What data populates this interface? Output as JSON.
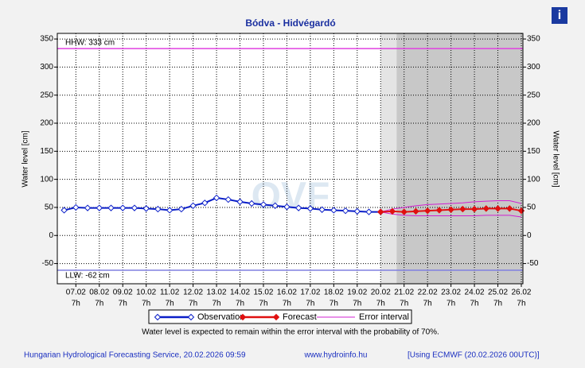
{
  "chart_data": {
    "type": "line",
    "title": "Bódva - Hidvégardó",
    "ylabel": "Water level [cm]",
    "y2label": "Water level [cm]",
    "xlim": [
      6.5,
      26.36
    ],
    "ylim": [
      -86,
      360
    ],
    "yticks": [
      -50,
      0,
      50,
      100,
      150,
      200,
      250,
      300,
      350
    ],
    "xticks": [
      {
        "value": 7.2917,
        "label": "07.02",
        "sublabel": "7h"
      },
      {
        "value": 8.2917,
        "label": "08.02",
        "sublabel": "7h"
      },
      {
        "value": 9.2917,
        "label": "09.02",
        "sublabel": "7h"
      },
      {
        "value": 10.2917,
        "label": "10.02",
        "sublabel": "7h"
      },
      {
        "value": 11.2917,
        "label": "11.02",
        "sublabel": "7h"
      },
      {
        "value": 12.2917,
        "label": "12.02",
        "sublabel": "7h"
      },
      {
        "value": 13.2917,
        "label": "13.02",
        "sublabel": "7h"
      },
      {
        "value": 14.2917,
        "label": "14.02",
        "sublabel": "7h"
      },
      {
        "value": 15.2917,
        "label": "15.02",
        "sublabel": "7h"
      },
      {
        "value": 16.2917,
        "label": "16.02",
        "sublabel": "7h"
      },
      {
        "value": 17.2917,
        "label": "17.02",
        "sublabel": "7h"
      },
      {
        "value": 18.2917,
        "label": "18.02",
        "sublabel": "7h"
      },
      {
        "value": 19.2917,
        "label": "19.02",
        "sublabel": "7h"
      },
      {
        "value": 20.2917,
        "label": "20.02",
        "sublabel": "7h"
      },
      {
        "value": 21.2917,
        "label": "21.02",
        "sublabel": "7h"
      },
      {
        "value": 22.2917,
        "label": "22.02",
        "sublabel": "7h"
      },
      {
        "value": 23.2917,
        "label": "23.02",
        "sublabel": "7h"
      },
      {
        "value": 24.2917,
        "label": "24.02",
        "sublabel": "7h"
      },
      {
        "value": 25.2917,
        "label": "25.02",
        "sublabel": "7h"
      },
      {
        "value": 26.2917,
        "label": "26.02",
        "sublabel": "7h"
      }
    ],
    "grid": true,
    "series": [
      {
        "name": "Observation",
        "color": "#0a1ec8",
        "x": [
          6.7917,
          7.2917,
          7.7917,
          8.2917,
          8.7917,
          9.2917,
          9.7917,
          10.2917,
          10.7917,
          11.2917,
          11.7917,
          12.2917,
          12.7917,
          13.2917,
          13.7917,
          14.2917,
          14.7917,
          15.2917,
          15.7917,
          16.2917,
          16.7917,
          17.2917,
          17.7917,
          18.2917,
          18.7917,
          19.2917,
          19.7917,
          20.2917
        ],
        "values": [
          45,
          50,
          49,
          49,
          49,
          49,
          49,
          48,
          47,
          45,
          47,
          53,
          58,
          67,
          64,
          60,
          57,
          55,
          53,
          51,
          49,
          48,
          46,
          45,
          44,
          43,
          42,
          42
        ]
      },
      {
        "name": "Forecast",
        "color": "#e01010",
        "x": [
          20.2917,
          20.7917,
          21.2917,
          21.7917,
          22.2917,
          22.7917,
          23.2917,
          23.7917,
          24.2917,
          24.7917,
          25.2917,
          25.7917,
          26.2917
        ],
        "values": [
          42,
          43,
          42,
          43,
          44,
          45,
          46,
          47,
          47,
          48,
          48,
          48,
          44
        ]
      },
      {
        "name": "Error interval",
        "color": "#d020d0",
        "x": [
          20.2917,
          20.7917,
          21.2917,
          21.7917,
          22.2917,
          22.7917,
          23.2917,
          23.7917,
          24.2917,
          24.7917,
          25.2917,
          25.7917,
          26.2917
        ],
        "upper": [
          42,
          47,
          50,
          53,
          55,
          56,
          57,
          58,
          60,
          61,
          62,
          62,
          57
        ],
        "lower": [
          42,
          38,
          36,
          35,
          35,
          35,
          35,
          35,
          35,
          36,
          36,
          36,
          33
        ]
      }
    ],
    "thresholds": [
      {
        "label": "HHW: 333 cm",
        "value": 333,
        "color": "#e040e0"
      },
      {
        "label": "LLW: -62 cm",
        "value": -62,
        "color": "#8080e0"
      }
    ],
    "watermark": "OVF",
    "note": "Water level is expected to remain within the error interval with the probability of 70%."
  },
  "footer": {
    "left": "Hungarian Hydrological Forecasting Service, 20.02.2026 09:59",
    "center": "www.hydroinfo.hu",
    "right": "[Using ECMWF (20.02.2026  00UTC)]"
  },
  "info_icon": "i"
}
